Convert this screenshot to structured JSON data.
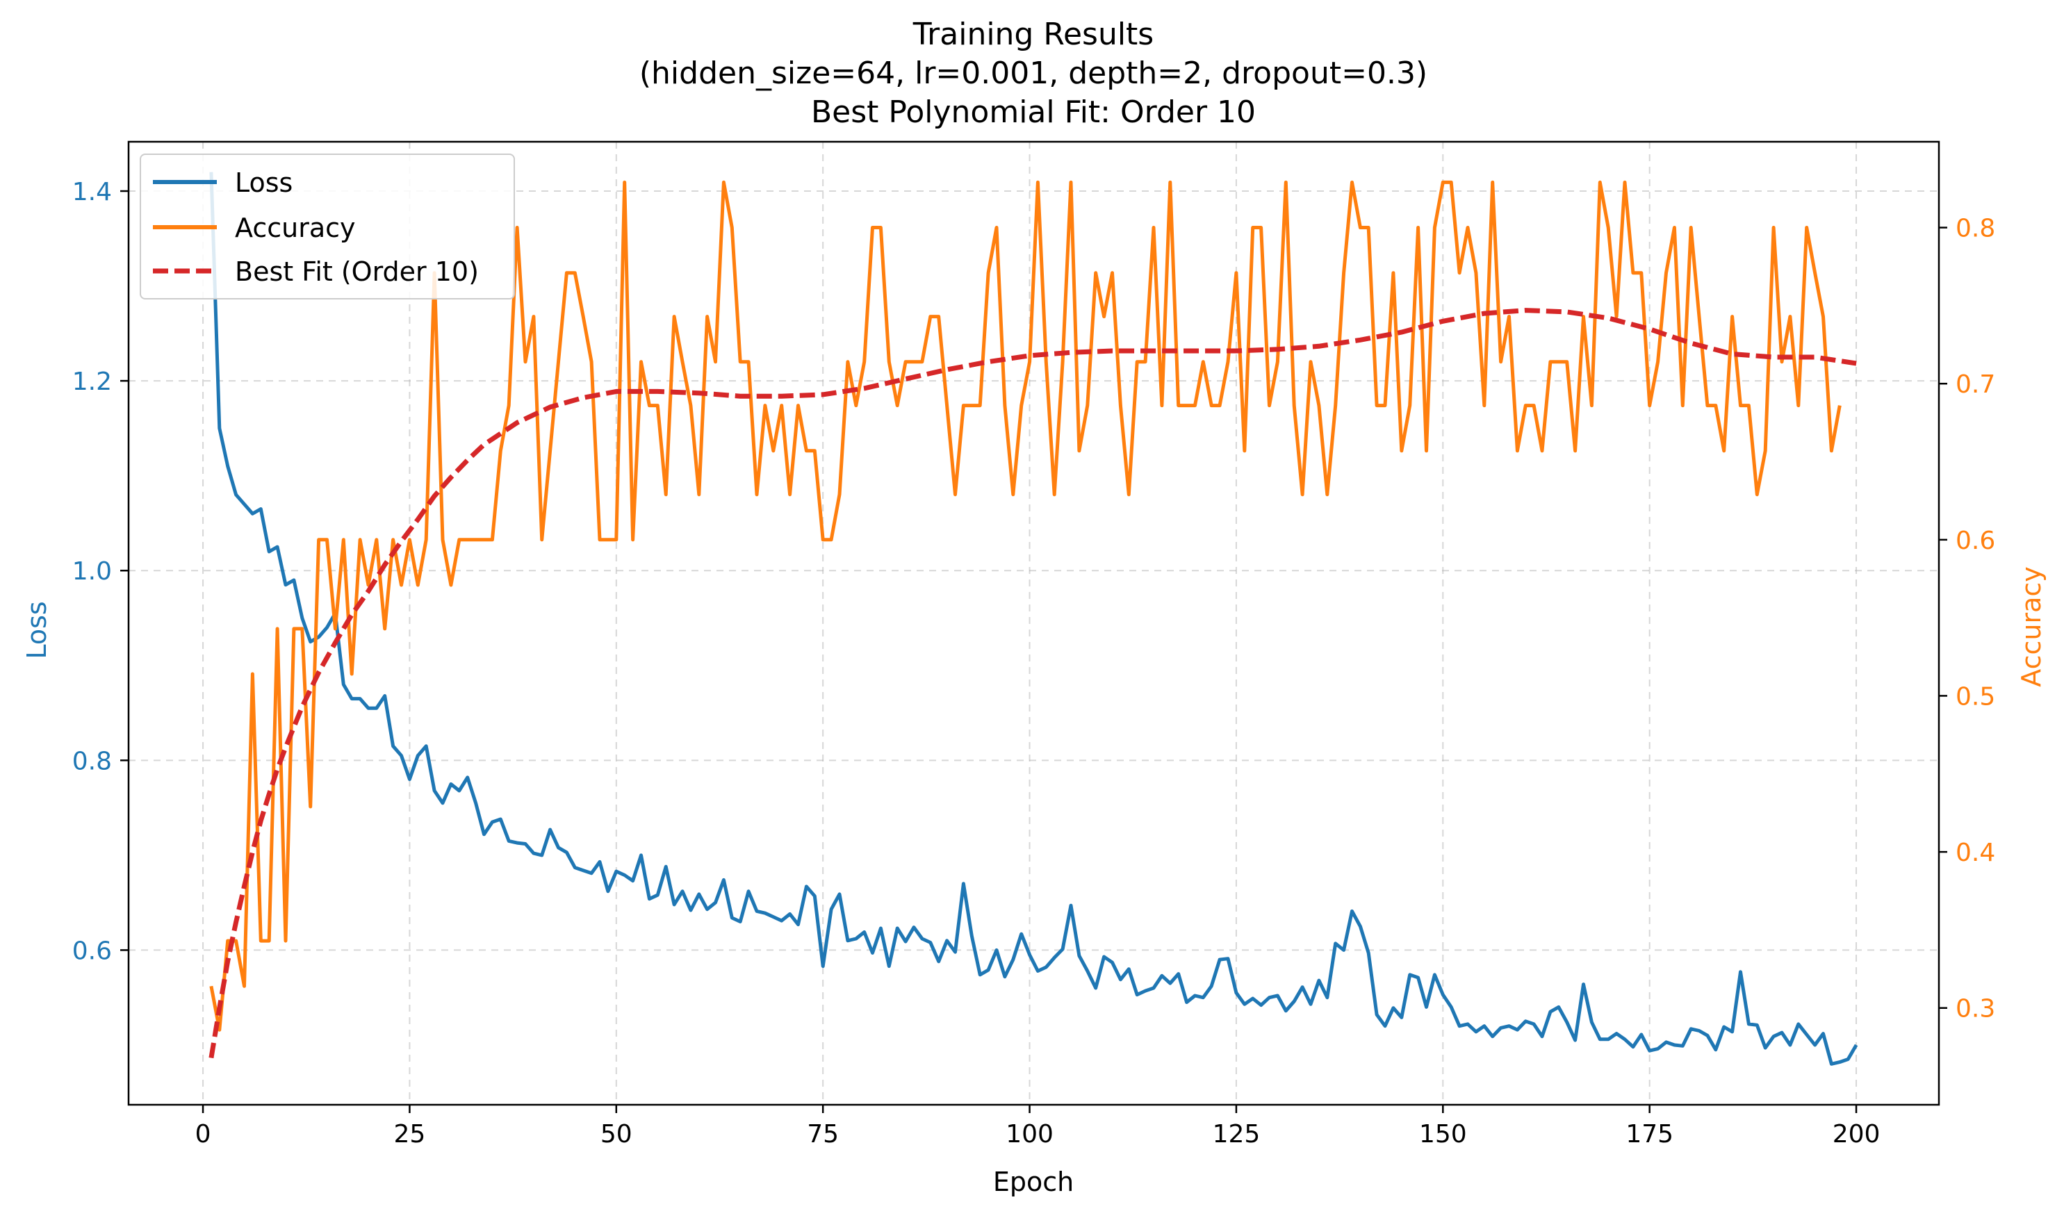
{
  "chart_data": {
    "type": "line",
    "title_lines": [
      "Training Results",
      "(hidden_size=64, lr=0.001, depth=2, dropout=0.3)",
      "Best Polynomial Fit: Order 10"
    ],
    "xlabel": "Epoch",
    "ylabel_left": "Loss",
    "ylabel_right": "Accuracy",
    "xlim": [
      -9,
      210
    ],
    "ylim_left": [
      0.437,
      1.452
    ],
    "ylim_right": [
      0.238,
      0.855
    ],
    "xticks": [
      0,
      25,
      50,
      75,
      100,
      125,
      150,
      175,
      200
    ],
    "yticks_left": [
      0.6,
      0.8,
      1.0,
      1.2,
      1.4
    ],
    "yticks_right": [
      0.3,
      0.4,
      0.5,
      0.6,
      0.7,
      0.8
    ],
    "grid": true,
    "legend_position": "top-left",
    "colors": {
      "loss": "#1f77b4",
      "accuracy": "#ff7f0e",
      "fit": "#d62728"
    },
    "series": [
      {
        "name": "Loss",
        "axis": "left",
        "style": "solid",
        "x_start": 1,
        "values": [
          1.42,
          1.15,
          1.11,
          1.08,
          1.07,
          1.06,
          1.065,
          1.02,
          1.025,
          0.985,
          0.99,
          0.95,
          0.925,
          0.93,
          0.94,
          0.955,
          0.88,
          0.865,
          0.865,
          0.855,
          0.855,
          0.868,
          0.815,
          0.805,
          0.78,
          0.805,
          0.815,
          0.768,
          0.755,
          0.775,
          0.768,
          0.782,
          0.755,
          0.722,
          0.735,
          0.738,
          0.715,
          0.713,
          0.712,
          0.702,
          0.7,
          0.727,
          0.708,
          0.703,
          0.687,
          0.684,
          0.681,
          0.693,
          0.662,
          0.683,
          0.679,
          0.673,
          0.7,
          0.654,
          0.658,
          0.688,
          0.648,
          0.662,
          0.642,
          0.659,
          0.643,
          0.65,
          0.674,
          0.634,
          0.63,
          0.662,
          0.641,
          0.639,
          0.635,
          0.631,
          0.638,
          0.627,
          0.667,
          0.657,
          0.583,
          0.643,
          0.659,
          0.61,
          0.612,
          0.619,
          0.597,
          0.623,
          0.583,
          0.623,
          0.609,
          0.624,
          0.612,
          0.608,
          0.588,
          0.61,
          0.598,
          0.67,
          0.615,
          0.574,
          0.579,
          0.6,
          0.572,
          0.59,
          0.617,
          0.595,
          0.578,
          0.582,
          0.592,
          0.601,
          0.647,
          0.594,
          0.578,
          0.56,
          0.593,
          0.587,
          0.569,
          0.58,
          0.553,
          0.557,
          0.56,
          0.573,
          0.565,
          0.575,
          0.545,
          0.552,
          0.55,
          0.562,
          0.59,
          0.591,
          0.555,
          0.543,
          0.549,
          0.542,
          0.55,
          0.552,
          0.536,
          0.546,
          0.561,
          0.543,
          0.568,
          0.55,
          0.607,
          0.6,
          0.641,
          0.625,
          0.597,
          0.532,
          0.52,
          0.539,
          0.529,
          0.574,
          0.571,
          0.54,
          0.574,
          0.553,
          0.54,
          0.52,
          0.522,
          0.514,
          0.52,
          0.509,
          0.518,
          0.52,
          0.516,
          0.525,
          0.522,
          0.509,
          0.535,
          0.54,
          0.524,
          0.505,
          0.564,
          0.524,
          0.506,
          0.506,
          0.512,
          0.506,
          0.498,
          0.511,
          0.494,
          0.496,
          0.503,
          0.5,
          0.499,
          0.517,
          0.515,
          0.51,
          0.495,
          0.519,
          0.514,
          0.577,
          0.522,
          0.521,
          0.497,
          0.509,
          0.513,
          0.5,
          0.522,
          0.511,
          0.5,
          0.512,
          0.48,
          0.482,
          0.485,
          0.5
        ]
      },
      {
        "name": "Accuracy",
        "axis": "right",
        "style": "solid",
        "x_start": 1,
        "values": [
          0.314,
          0.286,
          0.343,
          0.343,
          0.314,
          0.514,
          0.343,
          0.343,
          0.543,
          0.343,
          0.543,
          0.543,
          0.429,
          0.6,
          0.6,
          0.543,
          0.6,
          0.514,
          0.6,
          0.571,
          0.6,
          0.543,
          0.6,
          0.571,
          0.6,
          0.571,
          0.6,
          0.771,
          0.6,
          0.571,
          0.6,
          0.6,
          0.6,
          0.6,
          0.6,
          0.657,
          0.686,
          0.8,
          0.714,
          0.743,
          0.6,
          0.657,
          0.714,
          0.771,
          0.771,
          0.743,
          0.714,
          0.6,
          0.6,
          0.6,
          0.829,
          0.6,
          0.714,
          0.686,
          0.686,
          0.629,
          0.743,
          0.714,
          0.686,
          0.629,
          0.743,
          0.714,
          0.829,
          0.8,
          0.714,
          0.714,
          0.629,
          0.686,
          0.657,
          0.686,
          0.629,
          0.686,
          0.657,
          0.657,
          0.6,
          0.6,
          0.629,
          0.714,
          0.686,
          0.714,
          0.8,
          0.8,
          0.714,
          0.686,
          0.714,
          0.714,
          0.714,
          0.743,
          0.743,
          0.686,
          0.629,
          0.686,
          0.686,
          0.686,
          0.771,
          0.8,
          0.686,
          0.629,
          0.686,
          0.714,
          0.829,
          0.714,
          0.629,
          0.714,
          0.829,
          0.657,
          0.686,
          0.771,
          0.743,
          0.771,
          0.686,
          0.629,
          0.714,
          0.714,
          0.8,
          0.686,
          0.829,
          0.686,
          0.686,
          0.686,
          0.714,
          0.686,
          0.686,
          0.714,
          0.771,
          0.657,
          0.8,
          0.8,
          0.686,
          0.714,
          0.829,
          0.686,
          0.629,
          0.714,
          0.686,
          0.629,
          0.686,
          0.771,
          0.829,
          0.8,
          0.8,
          0.686,
          0.686,
          0.771,
          0.657,
          0.686,
          0.8,
          0.657,
          0.8,
          0.829,
          0.829,
          0.771,
          0.8,
          0.771,
          0.686,
          0.829,
          0.714,
          0.743,
          0.657,
          0.686,
          0.686,
          0.657,
          0.714,
          0.714,
          0.714,
          0.657,
          0.743,
          0.686,
          0.829,
          0.8,
          0.743,
          0.829,
          0.771,
          0.771,
          0.686,
          0.714,
          0.771,
          0.8,
          0.686,
          0.8,
          0.743,
          0.686,
          0.686,
          0.657,
          0.743,
          0.686,
          0.686,
          0.629,
          0.657,
          0.8,
          0.714,
          0.743,
          0.686,
          0.8,
          0.771,
          0.743,
          0.657,
          0.686
        ]
      },
      {
        "name": "Best Fit (Order 10)",
        "axis": "right",
        "style": "dashed",
        "x": [
          1,
          2,
          3,
          4,
          5,
          6,
          7,
          8,
          9,
          10,
          12,
          14,
          16,
          18,
          20,
          22,
          24,
          26,
          28,
          30,
          32,
          34,
          36,
          38,
          40,
          42,
          44,
          46,
          48,
          50,
          55,
          60,
          65,
          70,
          75,
          80,
          85,
          90,
          95,
          100,
          105,
          110,
          115,
          120,
          125,
          130,
          135,
          140,
          145,
          150,
          155,
          160,
          165,
          170,
          175,
          180,
          185,
          190,
          195,
          200
        ],
        "values": [
          0.268,
          0.3,
          0.33,
          0.355,
          0.378,
          0.4,
          0.42,
          0.437,
          0.453,
          0.467,
          0.493,
          0.515,
          0.534,
          0.552,
          0.567,
          0.584,
          0.599,
          0.613,
          0.628,
          0.64,
          0.651,
          0.661,
          0.668,
          0.675,
          0.68,
          0.685,
          0.688,
          0.691,
          0.693,
          0.695,
          0.695,
          0.694,
          0.692,
          0.692,
          0.693,
          0.697,
          0.703,
          0.709,
          0.714,
          0.718,
          0.72,
          0.721,
          0.721,
          0.721,
          0.721,
          0.722,
          0.724,
          0.728,
          0.733,
          0.74,
          0.745,
          0.747,
          0.746,
          0.742,
          0.735,
          0.726,
          0.719,
          0.717,
          0.717,
          0.713
        ]
      }
    ]
  }
}
